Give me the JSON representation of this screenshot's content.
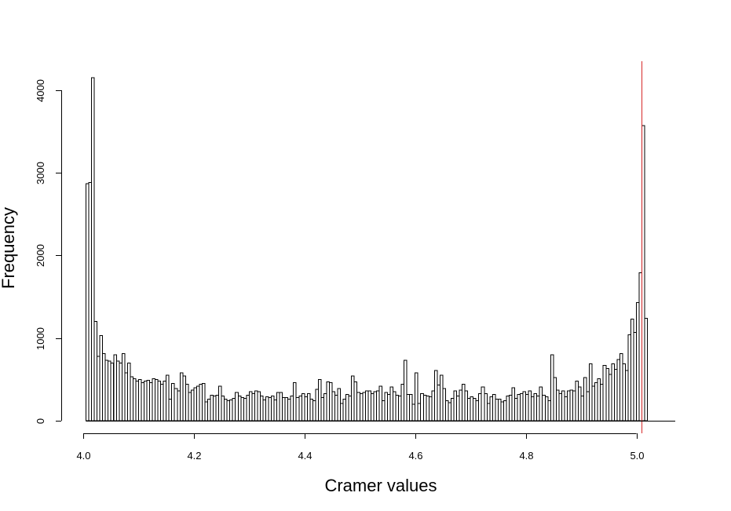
{
  "chart_data": {
    "type": "bar",
    "title": "",
    "xlabel": "Cramer values",
    "ylabel": "Frequency",
    "xlim": [
      4.0,
      5.06
    ],
    "ylim": [
      0,
      4300
    ],
    "bin_start": 4.005,
    "bin_width": 0.005,
    "x_ticks": [
      4.0,
      4.2,
      4.4,
      4.6,
      4.8,
      5.0
    ],
    "x_tick_labels": [
      "4.0",
      "4.2",
      "4.4",
      "4.6",
      "4.8",
      "5.0"
    ],
    "y_ticks": [
      0,
      1000,
      2000,
      3000,
      4000
    ],
    "y_tick_labels": [
      "0",
      "1000",
      "2000",
      "3000",
      "4000"
    ],
    "grid": false,
    "legend": "none",
    "vline": {
      "x": 5.01,
      "color": "#d62728"
    },
    "bar_fill": "#ffffff",
    "bar_edge": "#000000",
    "values": [
      2870,
      2880,
      4150,
      1200,
      780,
      1030,
      810,
      730,
      720,
      700,
      800,
      720,
      700,
      810,
      580,
      700,
      530,
      510,
      480,
      500,
      460,
      480,
      490,
      460,
      510,
      500,
      480,
      440,
      480,
      550,
      260,
      450,
      390,
      360,
      580,
      540,
      440,
      340,
      370,
      400,
      420,
      440,
      450,
      230,
      260,
      310,
      300,
      310,
      420,
      300,
      260,
      240,
      250,
      270,
      340,
      300,
      280,
      270,
      310,
      350,
      330,
      360,
      350,
      300,
      250,
      290,
      280,
      300,
      250,
      340,
      340,
      280,
      280,
      260,
      300,
      460,
      280,
      300,
      330,
      290,
      330,
      260,
      240,
      380,
      500,
      280,
      330,
      470,
      460,
      350,
      310,
      390,
      210,
      260,
      320,
      300,
      540,
      470,
      340,
      330,
      340,
      360,
      360,
      330,
      350,
      360,
      420,
      240,
      340,
      320,
      410,
      350,
      310,
      300,
      440,
      730,
      320,
      320,
      200,
      580,
      210,
      330,
      310,
      300,
      290,
      360,
      610,
      430,
      550,
      390,
      240,
      220,
      270,
      360,
      300,
      370,
      440,
      360,
      270,
      290,
      270,
      240,
      330,
      410,
      330,
      210,
      290,
      320,
      260,
      260,
      230,
      240,
      300,
      310,
      400,
      270,
      320,
      330,
      350,
      320,
      360,
      290,
      330,
      300,
      410,
      310,
      290,
      240,
      800,
      520,
      370,
      330,
      360,
      290,
      360,
      370,
      360,
      480,
      410,
      300,
      520,
      350,
      690,
      420,
      460,
      510,
      440,
      670,
      630,
      560,
      690,
      620,
      740,
      810,
      690,
      610,
      1040,
      1230,
      1070,
      1430,
      1790,
      3570,
      1240
    ]
  }
}
